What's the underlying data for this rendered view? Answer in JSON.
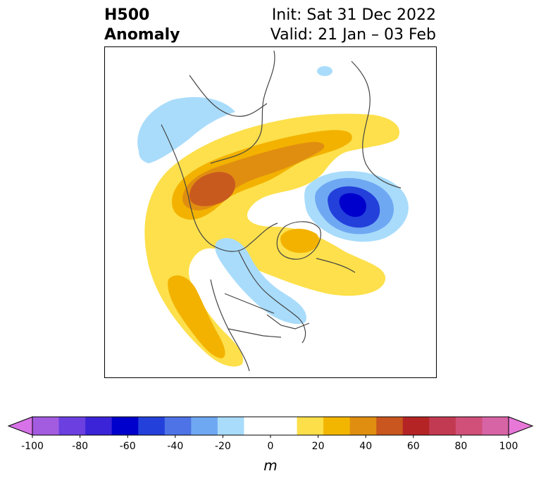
{
  "header": {
    "title_line1": "H500",
    "title_line2": "Anomaly",
    "init_text": "Init: Sat 31 Dec 2022",
    "valid_text": "Valid: 21 Jan – 03 Feb"
  },
  "map": {
    "region": "Northern Hemisphere polar projection",
    "field": "500 hPa geopotential height anomaly",
    "features": [
      {
        "name": "positive-anomaly-arc",
        "color": "#fde04b"
      },
      {
        "name": "positive-anomaly-core",
        "color": "#f3b200"
      },
      {
        "name": "strong-positive-core",
        "color": "#c95a1e"
      },
      {
        "name": "negative-anomaly-siberia",
        "color": "#2d4fd6"
      },
      {
        "name": "negative-anomaly-north-america",
        "color": "#a6d8f8"
      }
    ]
  },
  "colorbar": {
    "unit_label": "m",
    "ticks": [
      "-100",
      "-80",
      "-60",
      "-40",
      "-20",
      "0",
      "20",
      "40",
      "60",
      "80",
      "100"
    ],
    "colors": [
      "#d772e8",
      "#a35be0",
      "#6b3fe0",
      "#3b23d8",
      "#0000cc",
      "#2340db",
      "#4d73e6",
      "#6fa8f2",
      "#a9dcfb",
      "#ffffff",
      "#ffffff",
      "#fddf4a",
      "#f3b600",
      "#e08e10",
      "#c8561e",
      "#b52424",
      "#c23a52",
      "#d0507a",
      "#d764a4",
      "#e878d8"
    ]
  }
}
